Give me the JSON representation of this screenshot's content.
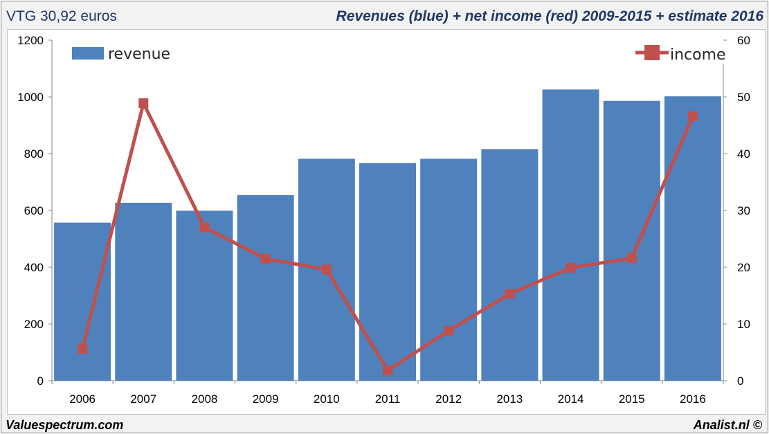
{
  "header": {
    "left": "VTG 30,92 euros",
    "right": "Revenues (blue) + net income (red) 2009-2015 + estimate 2016"
  },
  "footer": {
    "left": "Valuespectrum.com",
    "right": "Analist.nl ©"
  },
  "colors": {
    "bar": "#4f81bd",
    "line": "#c0504d"
  },
  "chart_data": {
    "type": "bar",
    "categories": [
      "2006",
      "2007",
      "2008",
      "2009",
      "2010",
      "2011",
      "2012",
      "2013",
      "2014",
      "2015",
      "2016"
    ],
    "series": [
      {
        "name": "revenue",
        "type": "bar",
        "axis": "left",
        "values": [
          557,
          627,
          599,
          654,
          782,
          767,
          782,
          816,
          1026,
          986,
          1002
        ]
      },
      {
        "name": "income",
        "type": "line",
        "axis": "right",
        "values": [
          5.6,
          48.9,
          27.0,
          21.5,
          19.6,
          1.8,
          8.8,
          15.3,
          19.9,
          21.6,
          46.6
        ]
      }
    ],
    "y_left": {
      "ylim": [
        0,
        1200
      ],
      "ticks": [
        "0",
        "200",
        "400",
        "600",
        "800",
        "1000",
        "1200"
      ]
    },
    "y_right": {
      "ylim": [
        0,
        60
      ],
      "ticks": [
        "0",
        "10",
        "20",
        "30",
        "40",
        "50",
        "60"
      ]
    },
    "legend": [
      "revenue",
      "income"
    ],
    "grid": false
  }
}
